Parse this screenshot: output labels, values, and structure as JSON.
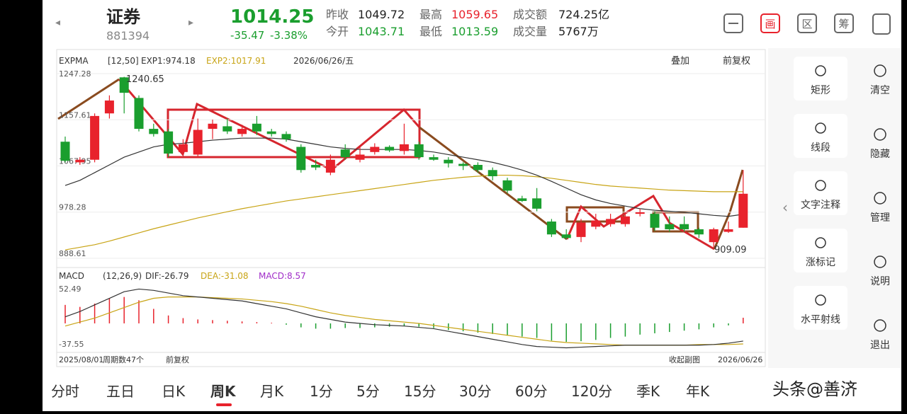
{
  "header": {
    "name": "证券",
    "code": "881394",
    "price": "1014.25",
    "change": "-35.47",
    "change_pct": "-3.38%",
    "stats": [
      [
        "昨收",
        "1049.72"
      ],
      [
        "最高",
        "1059.65"
      ],
      [
        "成交额",
        "724.25亿"
      ],
      [
        "今开",
        "1043.71"
      ],
      [
        "最低",
        "1013.59"
      ],
      [
        "成交量",
        "5767万"
      ]
    ],
    "icons": [
      "画",
      "区",
      "筹"
    ]
  },
  "main_chart": {
    "legend": [
      "EXPMA",
      "[12,50]",
      "EXP1:974.18",
      "EXP2:1017.91"
    ],
    "date": "2026/06/26/五",
    "overlay": "叠加",
    "adjust": "前复权",
    "price_axis": [
      1247.28,
      1157.61,
      1067.95,
      978.28,
      888.61
    ],
    "high_label": "1240.65",
    "low_label": "909.09",
    "colors": {
      "up": "#e8222c",
      "down": "#1a9e2e",
      "exp1": "#333333",
      "exp2": "#c8a415"
    },
    "candles": {
      "open": [
        1115,
        1075,
        1080,
        1170,
        1240,
        1200,
        1140,
        1135,
        1095,
        1090,
        1140,
        1145,
        1130,
        1150,
        1135,
        1130,
        1105,
        1070,
        1055,
        1100,
        1080,
        1095,
        1105,
        1097,
        1110,
        1085,
        1080,
        1072,
        1070,
        1060,
        1040,
        1005,
        1005,
        960,
        935,
        930,
        950,
        955,
        955,
        975,
        975,
        955,
        955,
        945,
        920,
        940,
        948
      ],
      "high": [
        1125,
        1085,
        1170,
        1205,
        1241,
        1205,
        1150,
        1140,
        1120,
        1160,
        1158,
        1160,
        1148,
        1165,
        1140,
        1135,
        1110,
        1080,
        1090,
        1110,
        1105,
        1112,
        1108,
        1150,
        1115,
        1090,
        1085,
        1075,
        1075,
        1065,
        1045,
        1010,
        1025,
        965,
        945,
        965,
        975,
        975,
        978,
        985,
        980,
        970,
        970,
        948,
        948,
        960,
        1060
      ],
      "low": [
        1075,
        1070,
        1075,
        1160,
        1170,
        1135,
        1125,
        1085,
        1090,
        1085,
        1120,
        1130,
        1125,
        1128,
        1125,
        1115,
        1055,
        1060,
        1050,
        1080,
        1075,
        1090,
        1095,
        1090,
        1080,
        1078,
        1065,
        1060,
        1055,
        1040,
        1015,
        998,
        980,
        930,
        925,
        920,
        945,
        950,
        950,
        970,
        942,
        940,
        940,
        928,
        909,
        938,
        948
      ],
      "close": [
        1078,
        1080,
        1165,
        1195,
        1210,
        1140,
        1130,
        1092,
        1110,
        1138,
        1150,
        1135,
        1140,
        1135,
        1130,
        1120,
        1060,
        1065,
        1080,
        1085,
        1090,
        1105,
        1098,
        1110,
        1085,
        1080,
        1073,
        1068,
        1060,
        1048,
        1020,
        1000,
        985,
        935,
        928,
        958,
        962,
        965,
        970,
        978,
        948,
        945,
        945,
        935,
        945,
        945,
        1014
      ]
    },
    "exp1": [
      1030,
      1040,
      1055,
      1070,
      1085,
      1095,
      1105,
      1110,
      1112,
      1115,
      1118,
      1120,
      1122,
      1122,
      1122,
      1120,
      1115,
      1110,
      1105,
      1102,
      1100,
      1100,
      1100,
      1100,
      1098,
      1095,
      1090,
      1085,
      1080,
      1075,
      1068,
      1060,
      1050,
      1038,
      1025,
      1012,
      1002,
      995,
      990,
      985,
      982,
      980,
      978,
      975,
      972,
      970,
      974.18
    ],
    "exp2": [
      905,
      910,
      915,
      922,
      930,
      938,
      946,
      953,
      960,
      967,
      973,
      979,
      985,
      990,
      995,
      1000,
      1004,
      1008,
      1012,
      1016,
      1020,
      1024,
      1028,
      1032,
      1036,
      1040,
      1043,
      1046,
      1048,
      1050,
      1050,
      1049,
      1047,
      1044,
      1040,
      1036,
      1032,
      1029,
      1027,
      1025,
      1023,
      1021,
      1020,
      1019,
      1018,
      1018,
      1017.91
    ]
  },
  "macd_chart": {
    "legend": [
      "MACD",
      "(12,26,9)",
      "DIF:-26.79",
      "DEA:-31.08",
      "MACD:8.57"
    ],
    "axis": [
      52.49,
      -37.55
    ],
    "hist": [
      28,
      25,
      30,
      38,
      40,
      35,
      22,
      12,
      8,
      6,
      5,
      4,
      3,
      2,
      1,
      -2,
      -6,
      -8,
      -8,
      -7,
      -7,
      -6,
      -5,
      -4,
      -5,
      -7,
      -10,
      -12,
      -14,
      -16,
      -18,
      -20,
      -22,
      -26,
      -28,
      -27,
      -25,
      -22,
      -20,
      -17,
      -15,
      -13,
      -11,
      -9,
      -6,
      -3,
      8.57
    ],
    "dif": [
      10,
      18,
      28,
      38,
      48,
      52,
      50,
      46,
      42,
      40,
      38,
      36,
      34,
      30,
      26,
      22,
      16,
      10,
      6,
      2,
      0,
      -2,
      -3,
      -4,
      -6,
      -8,
      -12,
      -16,
      -20,
      -24,
      -28,
      -32,
      -35,
      -36,
      -37,
      -36,
      -35,
      -34,
      -33,
      -33,
      -33,
      -33,
      -33,
      -33,
      -32,
      -30,
      -26.79
    ],
    "dea": [
      -4,
      2,
      8,
      16,
      24,
      32,
      38,
      40,
      40,
      40,
      39,
      38,
      37,
      35,
      33,
      30,
      26,
      21,
      16,
      12,
      9,
      6,
      4,
      2,
      0,
      -3,
      -6,
      -9,
      -12,
      -15,
      -18,
      -21,
      -24,
      -27,
      -29,
      -30,
      -31,
      -32,
      -33,
      -33,
      -33,
      -33,
      -33,
      -32,
      -32,
      -32,
      -31.08
    ]
  },
  "footer": {
    "start": "2025/08/01",
    "count": "周期数47个",
    "adjust": "前复权",
    "collapse": "收起副图",
    "end": "2026/06/26"
  },
  "tabs": [
    "分时",
    "五日",
    "日K",
    "周K",
    "月K",
    "1分",
    "5分",
    "15分",
    "30分",
    "60分",
    "120分",
    "季K",
    "年K"
  ],
  "tools": [
    "矩形",
    "线段",
    "文字注释",
    "涨标记",
    "水平射线"
  ],
  "side": [
    "清空",
    "隐藏",
    "管理",
    "说明",
    "退出"
  ],
  "watermark": "头条@善济"
}
